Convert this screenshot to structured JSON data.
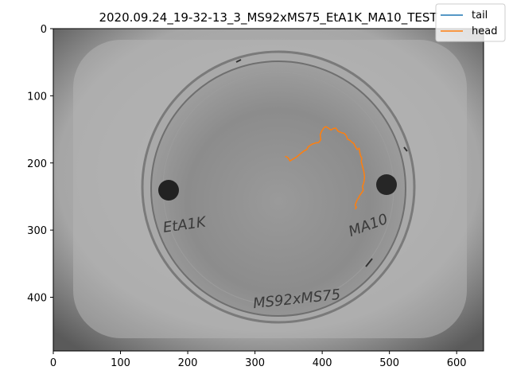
{
  "chart_data": {
    "type": "line",
    "title": "2020.09.24_19-32-13_3_MS92xMS75_EtA1K_MA10_TEST",
    "xlabel": "",
    "ylabel": "",
    "xlim": [
      0,
      640
    ],
    "ylim": [
      480,
      0
    ],
    "y_inverted": true,
    "x_ticks": [
      0,
      100,
      200,
      300,
      400,
      500,
      600
    ],
    "y_ticks": [
      0,
      100,
      200,
      300,
      400
    ],
    "grid": false,
    "legend_position": "top-right",
    "background": "grayscale image of a petri dish with two dark spots and handwritten labels",
    "dish_labels": [
      "EtA1K",
      "MA10",
      "MS92xMS75"
    ],
    "series": [
      {
        "name": "tail",
        "color": "#1f77b4",
        "x": [],
        "y": []
      },
      {
        "name": "head",
        "color": "#ff7f0e",
        "x": [
          345,
          349,
          352,
          357,
          362,
          368,
          373,
          377,
          379,
          382,
          385,
          388,
          391,
          394,
          396,
          398,
          397,
          399,
          403,
          406,
          409,
          413,
          416,
          420,
          424,
          429,
          433,
          436,
          438,
          441,
          444,
          447,
          449,
          452,
          455,
          456,
          457,
          459,
          458,
          460,
          462,
          463,
          462,
          460,
          461,
          459,
          456,
          454,
          452,
          450,
          449,
          451,
          449
        ],
        "y": [
          190,
          192,
          197,
          194,
          191,
          186,
          182,
          180,
          176,
          174,
          172,
          171,
          170,
          170,
          168,
          165,
          158,
          153,
          147,
          146,
          148,
          151,
          149,
          148,
          153,
          155,
          156,
          160,
          165,
          166,
          169,
          171,
          175,
          180,
          178,
          185,
          189,
          193,
          198,
          205,
          213,
          221,
          229,
          235,
          241,
          244,
          248,
          252,
          255,
          260,
          263,
          266,
          269
        ]
      }
    ]
  }
}
